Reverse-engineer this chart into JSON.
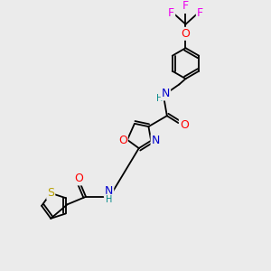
{
  "background_color": "#ebebeb",
  "figsize": [
    3.0,
    3.0
  ],
  "dpi": 100,
  "atoms": {
    "S": {
      "color": "#b8a000",
      "fontsize": 8
    },
    "O": {
      "color": "#ff0000",
      "fontsize": 8
    },
    "N": {
      "color": "#0000cc",
      "fontsize": 8
    },
    "F": {
      "color": "#ee00ee",
      "fontsize": 8
    },
    "H": {
      "color": "#008888",
      "fontsize": 7
    },
    "C": {
      "color": "#000000",
      "fontsize": 7
    }
  },
  "bond_color": "#000000",
  "bond_width": 1.3
}
